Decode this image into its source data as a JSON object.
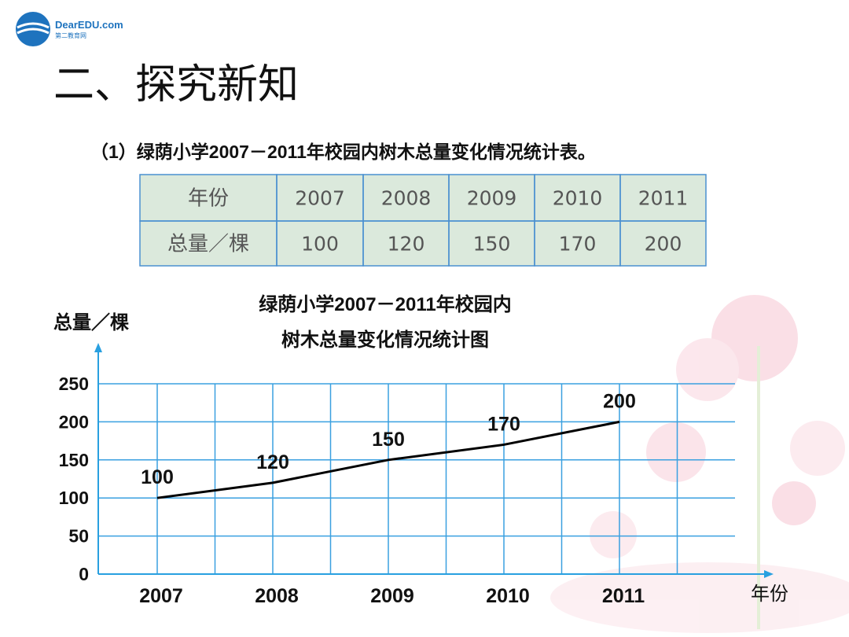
{
  "logo": {
    "name": "DearEDU.com",
    "subname": "第二教育网"
  },
  "header": {
    "title": "二、探究新知"
  },
  "table": {
    "caption": "（1）绿荫小学2007－2011年校园内树木总量变化情况统计表。",
    "header": [
      "年份",
      "2007",
      "2008",
      "2009",
      "2010",
      "2011"
    ],
    "rows": [
      [
        "总量／棵",
        "100",
        "120",
        "150",
        "170",
        "200"
      ]
    ]
  },
  "chart_data": {
    "type": "line",
    "title": [
      "绿荫小学2007－2011年校园内",
      "树木总量变化情况统计图"
    ],
    "y_label": "总量／棵",
    "x_label": "年份",
    "categories": [
      "2007",
      "2008",
      "2009",
      "2010",
      "2011"
    ],
    "values": [
      100,
      120,
      150,
      170,
      200
    ],
    "color": "#000000",
    "ylim": [
      0,
      250
    ],
    "yticks": [
      0,
      50,
      100,
      150,
      200,
      250
    ],
    "grid": true
  }
}
